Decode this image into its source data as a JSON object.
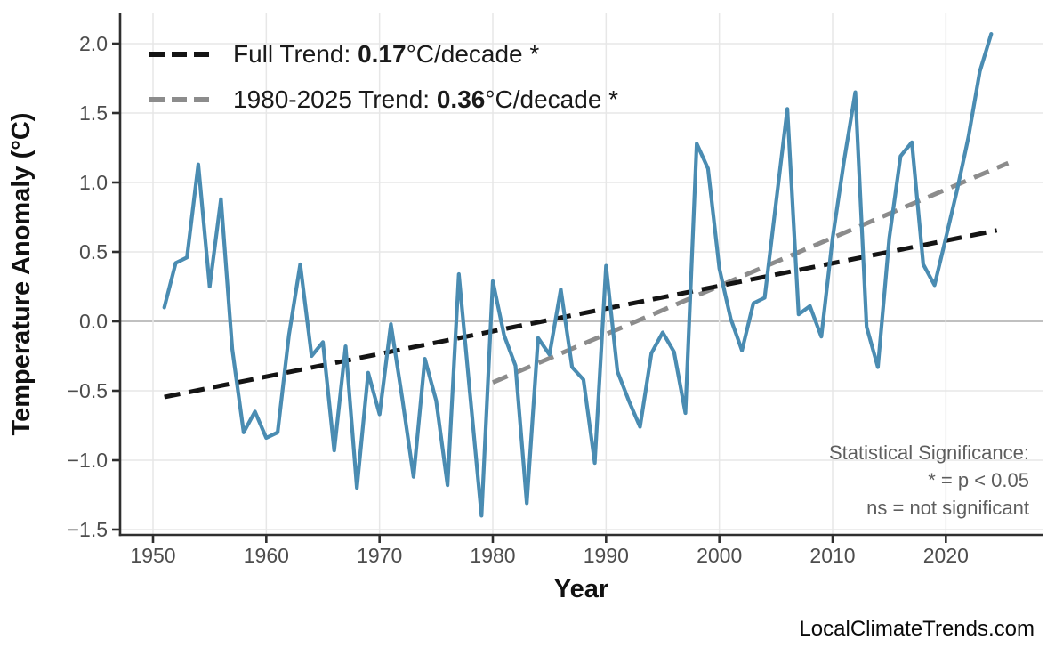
{
  "page": {
    "background": "#ffffff"
  },
  "legend": {
    "items": [
      {
        "prefix": "Full Trend: ",
        "value": "0.17",
        "suffix": "°C/decade *",
        "color": "#141414"
      },
      {
        "prefix": "1980-2025 Trend: ",
        "value": "0.36",
        "suffix": "°C/decade *",
        "color": "#8c8c8c"
      }
    ]
  },
  "annotations": {
    "significance": {
      "lines": [
        "Statistical Significance:",
        "* = p < 0.05",
        "ns = not significant"
      ],
      "color": "#5e5e5e"
    },
    "watermark": "LocalClimateTrends.com"
  },
  "chart_data": {
    "type": "line",
    "title": "",
    "xlabel": "Year",
    "ylabel": "Temperature Anomaly (°C)",
    "xlim": [
      1947.1,
      2028.5
    ],
    "ylim": [
      -1.54,
      2.22
    ],
    "grid": true,
    "x_ticks": [
      1950,
      1960,
      1970,
      1980,
      1990,
      2000,
      2010,
      2020
    ],
    "y_ticks": [
      2.0,
      1.5,
      1.0,
      0.5,
      0.0,
      -0.5,
      -1.0,
      -1.5
    ],
    "y_tick_labels": [
      "2.0",
      "1.5",
      "1.0",
      "0.5",
      "0.0",
      "−0.5",
      "−1.0",
      "−1.5"
    ],
    "zero_line_color": "#acacac",
    "grid_color": "#e7e7e7",
    "axis_color": "#2f2f2f",
    "tick_label_color": "#4d4d4d",
    "series": [
      {
        "name": "annual-temperature-anomaly",
        "color": "#4a8cb2",
        "x": [
          1951,
          1952,
          1953,
          1954,
          1955,
          1956,
          1957,
          1958,
          1959,
          1960,
          1961,
          1962,
          1963,
          1964,
          1965,
          1966,
          1967,
          1968,
          1969,
          1970,
          1971,
          1972,
          1973,
          1974,
          1975,
          1976,
          1977,
          1978,
          1979,
          1980,
          1981,
          1982,
          1983,
          1984,
          1985,
          1986,
          1987,
          1988,
          1989,
          1990,
          1991,
          1992,
          1993,
          1994,
          1995,
          1996,
          1997,
          1998,
          1999,
          2000,
          2001,
          2002,
          2003,
          2004,
          2005,
          2006,
          2007,
          2008,
          2009,
          2010,
          2011,
          2012,
          2013,
          2014,
          2015,
          2016,
          2017,
          2018,
          2019,
          2020,
          2021,
          2022,
          2023,
          2024
        ],
        "y": [
          0.1,
          0.42,
          0.46,
          1.13,
          0.25,
          0.88,
          -0.2,
          -0.8,
          -0.65,
          -0.84,
          -0.8,
          -0.1,
          0.41,
          -0.25,
          -0.15,
          -0.93,
          -0.18,
          -1.2,
          -0.37,
          -0.67,
          -0.02,
          -0.55,
          -1.12,
          -0.27,
          -0.57,
          -1.18,
          0.34,
          -0.53,
          -1.4,
          0.29,
          -0.1,
          -0.32,
          -1.31,
          -0.12,
          -0.24,
          0.23,
          -0.33,
          -0.42,
          -1.02,
          0.4,
          -0.36,
          -0.57,
          -0.76,
          -0.23,
          -0.08,
          -0.22,
          -0.66,
          1.28,
          1.1,
          0.38,
          0.02,
          -0.21,
          0.13,
          0.17,
          0.85,
          1.53,
          0.05,
          0.11,
          -0.11,
          0.6,
          1.15,
          1.65,
          -0.04,
          -0.33,
          0.6,
          1.19,
          1.29,
          0.41,
          0.26,
          0.6,
          0.95,
          1.33,
          1.8,
          2.07
        ]
      }
    ],
    "trend_lines": [
      {
        "name": "full-trend",
        "label": "Full Trend",
        "rate_per_decade": 0.17,
        "significant": true,
        "color": "#141414",
        "dashed": true,
        "x": [
          1951,
          2024.5
        ],
        "y": [
          -0.545,
          0.655
        ]
      },
      {
        "name": "recent-trend-1980-2025",
        "label": "1980-2025 Trend",
        "rate_per_decade": 0.36,
        "significant": true,
        "color": "#8c8c8c",
        "dashed": true,
        "x": [
          1980,
          2025.5
        ],
        "y": [
          -0.44,
          1.14
        ]
      }
    ],
    "legend_position": "top-left"
  }
}
